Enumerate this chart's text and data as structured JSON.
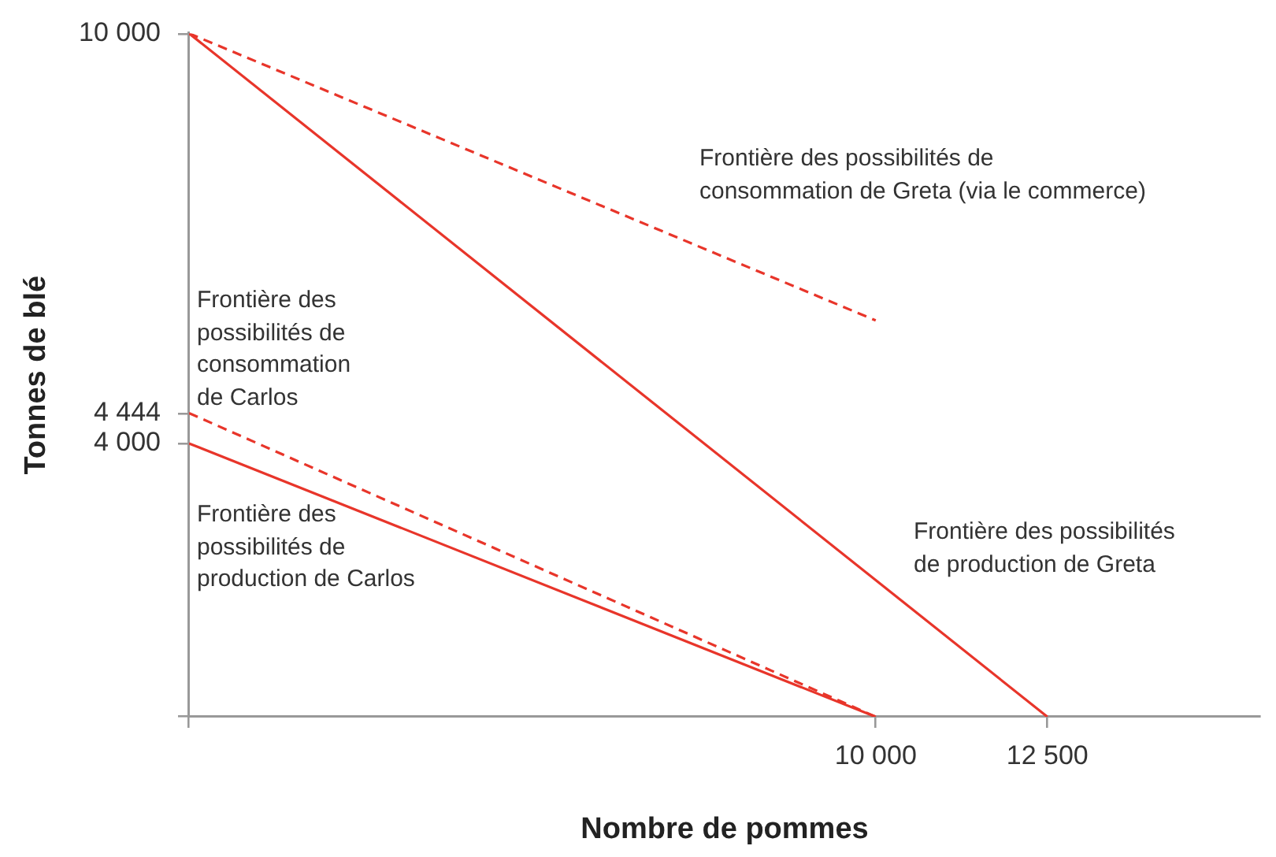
{
  "chart_data": {
    "type": "line",
    "xlabel": "Nombre de pommes",
    "ylabel": "Tonnes de blé",
    "xlim": [
      0,
      15600
    ],
    "xticks": [
      {
        "value": 0,
        "label": null
      },
      {
        "value": 10000,
        "label": "10 000"
      },
      {
        "value": 12500,
        "label": "12 500"
      }
    ],
    "ylim": [
      0,
      10000
    ],
    "yticks": [
      {
        "value": 0,
        "label": null
      },
      {
        "value": 4000,
        "label": "4 000"
      },
      {
        "value": 4444,
        "label": "4 444"
      },
      {
        "value": 10000,
        "label": "10 000"
      }
    ],
    "grid": false,
    "legend": false,
    "series": [
      {
        "name": "Frontière des possibilités\nde production de Greta",
        "color": "#e8352a",
        "line_style": "solid",
        "x": [
          0,
          12500
        ],
        "values": [
          10000,
          0
        ]
      },
      {
        "name": "Frontière des possibilités de\nconsommation de Greta (via le commerce)",
        "color": "#e8352a",
        "line_style": "dashed",
        "x": [
          0,
          10000
        ],
        "values": [
          10000,
          5800
        ]
      },
      {
        "name": "Frontière des\npossibilités de\nproduction de Carlos",
        "color": "#e8352a",
        "line_style": "solid",
        "x": [
          0,
          10000
        ],
        "values": [
          4000,
          0
        ]
      },
      {
        "name": "Frontière des\npossibilités de\nconsommation\nde Carlos",
        "color": "#e8352a",
        "line_style": "dashed",
        "x": [
          0,
          10000
        ],
        "values": [
          4444,
          0
        ]
      }
    ]
  }
}
